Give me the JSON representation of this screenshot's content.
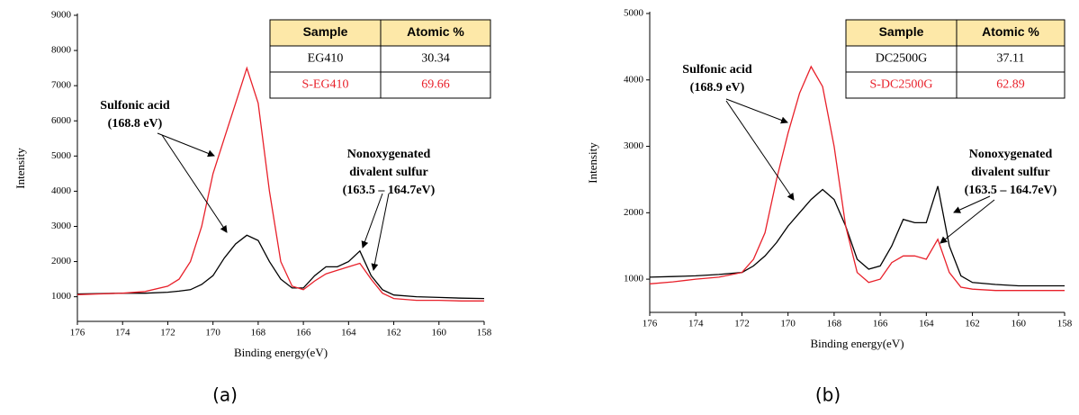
{
  "chart_data": [
    {
      "type": "line",
      "label": "(a)",
      "xlabel": "Binding energy(eV)",
      "ylabel": "Intensity",
      "xlim": [
        176,
        158
      ],
      "xticks": [
        176,
        174,
        172,
        170,
        168,
        166,
        164,
        162,
        160,
        158
      ],
      "ylim": [
        300,
        9000
      ],
      "yticks": [
        1000,
        2000,
        3000,
        4000,
        5000,
        6000,
        7000,
        8000,
        9000
      ],
      "x": [
        176,
        175,
        174,
        173,
        172,
        171.5,
        171,
        170.5,
        170,
        169.5,
        169,
        168.5,
        168,
        167.5,
        167,
        166.5,
        166,
        165.5,
        165,
        164.5,
        164,
        163.5,
        163,
        162.5,
        162,
        161,
        160,
        159,
        158
      ],
      "series": [
        {
          "color": "#000000",
          "values": [
            1080,
            1090,
            1100,
            1100,
            1130,
            1160,
            1200,
            1350,
            1600,
            2100,
            2500,
            2750,
            2600,
            2000,
            1500,
            1250,
            1250,
            1600,
            1850,
            1850,
            2000,
            2300,
            1600,
            1200,
            1050,
            1000,
            980,
            960,
            950
          ]
        },
        {
          "color": "#e8202a",
          "values": [
            1060,
            1080,
            1100,
            1150,
            1300,
            1500,
            2000,
            3000,
            4500,
            5500,
            6500,
            7500,
            6500,
            4000,
            2000,
            1300,
            1200,
            1450,
            1650,
            1750,
            1850,
            1950,
            1500,
            1100,
            950,
            900,
            900,
            880,
            880
          ]
        }
      ],
      "annotations": [
        [
          "Sulfonic acid",
          "(168.8 eV)"
        ],
        [
          "Nonoxygenated",
          "divalent sulfur",
          "(163.5 – 164.7eV)"
        ]
      ],
      "table": {
        "header": [
          "Sample",
          "Atomic %"
        ],
        "rows": [
          [
            "EG410",
            "30.34"
          ],
          [
            "S-EG410",
            "69.66"
          ]
        ],
        "row_colors": [
          "#000000",
          "#e8202a"
        ],
        "header_color": "#fde8a8"
      }
    },
    {
      "type": "line",
      "label": "(b)",
      "xlabel": "Binding energy(eV)",
      "ylabel": "Intensity",
      "xlim": [
        176,
        158
      ],
      "xticks": [
        176,
        174,
        172,
        170,
        168,
        166,
        164,
        162,
        160,
        158
      ],
      "ylim": [
        500,
        5000
      ],
      "yticks": [
        1000,
        2000,
        3000,
        4000,
        5000
      ],
      "x": [
        176,
        175,
        174,
        173,
        172,
        171.5,
        171,
        170.5,
        170,
        169.5,
        169,
        168.5,
        168,
        167.5,
        167,
        166.5,
        166,
        165.5,
        165,
        164.5,
        164,
        163.5,
        163,
        162.5,
        162,
        161,
        160,
        159,
        158
      ],
      "series": [
        {
          "color": "#000000",
          "values": [
            1030,
            1040,
            1050,
            1070,
            1100,
            1200,
            1350,
            1550,
            1800,
            2000,
            2200,
            2350,
            2200,
            1800,
            1300,
            1150,
            1200,
            1500,
            1900,
            1850,
            1850,
            2400,
            1500,
            1050,
            950,
            920,
            900,
            900,
            900
          ]
        },
        {
          "color": "#e8202a",
          "values": [
            930,
            960,
            1000,
            1030,
            1100,
            1300,
            1700,
            2500,
            3200,
            3800,
            4200,
            3900,
            3000,
            1800,
            1100,
            950,
            1000,
            1250,
            1350,
            1350,
            1300,
            1600,
            1100,
            880,
            850,
            830,
            830,
            830,
            830
          ]
        }
      ],
      "annotations": [
        [
          "Sulfonic acid",
          "(168.9 eV)"
        ],
        [
          "Nonoxygenated",
          "divalent sulfur",
          "(163.5 – 164.7eV)"
        ]
      ],
      "table": {
        "header": [
          "Sample",
          "Atomic %"
        ],
        "rows": [
          [
            "DC2500G",
            "37.11"
          ],
          [
            "S-DC2500G",
            "62.89"
          ]
        ],
        "row_colors": [
          "#000000",
          "#e8202a"
        ],
        "header_color": "#fde8a8"
      }
    }
  ]
}
